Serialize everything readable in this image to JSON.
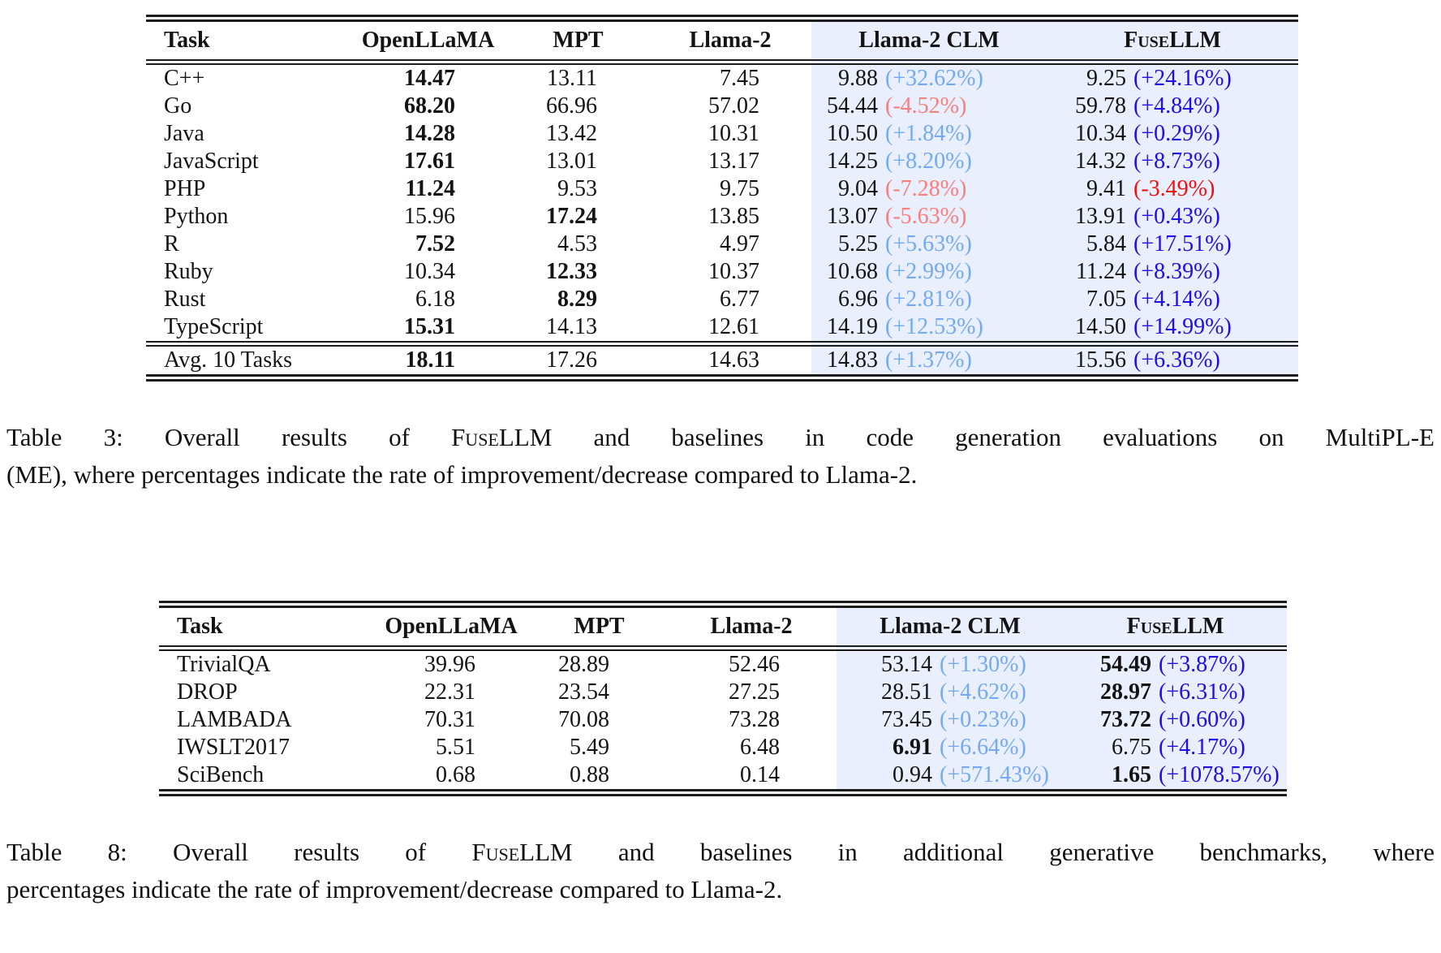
{
  "colors": {
    "highlight_bg": "#e9effc",
    "pct_positive_light": "#74a9f4",
    "pct_negative_light": "#f97e7e",
    "pct_positive_dark": "#1d0ee8",
    "pct_negative_dark": "#f30d0d",
    "rule_color": "#1c1c1c",
    "text_color": "#141414"
  },
  "tables": [
    {
      "name": "multipl-e-results-table",
      "headers": [
        "Task",
        "OpenLLaMA",
        "MPT",
        "Llama-2",
        "Llama-2 CLM",
        "FuseLLM"
      ],
      "rows": [
        {
          "task": "C++",
          "scores": [
            {
              "v": "14.47",
              "bold": true
            },
            {
              "v": "13.11"
            },
            {
              "v": "7.45"
            }
          ],
          "clm": {
            "v": "9.88",
            "pct": "(+32.62%)"
          },
          "fusellm": {
            "v": "9.25",
            "pct": "(+24.16%)"
          }
        },
        {
          "task": "Go",
          "scores": [
            {
              "v": "68.20",
              "bold": true
            },
            {
              "v": "66.96"
            },
            {
              "v": "57.02"
            }
          ],
          "clm": {
            "v": "54.44",
            "pct": "(-4.52%)"
          },
          "fusellm": {
            "v": "59.78",
            "pct": "(+4.84%)"
          }
        },
        {
          "task": "Java",
          "scores": [
            {
              "v": "14.28",
              "bold": true
            },
            {
              "v": "13.42"
            },
            {
              "v": "10.31"
            }
          ],
          "clm": {
            "v": "10.50",
            "pct": "(+1.84%)"
          },
          "fusellm": {
            "v": "10.34",
            "pct": "(+0.29%)"
          }
        },
        {
          "task": "JavaScript",
          "scores": [
            {
              "v": "17.61",
              "bold": true
            },
            {
              "v": "13.01"
            },
            {
              "v": "13.17"
            }
          ],
          "clm": {
            "v": "14.25",
            "pct": "(+8.20%)"
          },
          "fusellm": {
            "v": "14.32",
            "pct": "(+8.73%)"
          }
        },
        {
          "task": "PHP",
          "scores": [
            {
              "v": "11.24",
              "bold": true
            },
            {
              "v": "9.53"
            },
            {
              "v": "9.75"
            }
          ],
          "clm": {
            "v": "9.04",
            "pct": "(-7.28%)"
          },
          "fusellm": {
            "v": "9.41",
            "pct": "(-3.49%)"
          }
        },
        {
          "task": "Python",
          "scores": [
            {
              "v": "15.96"
            },
            {
              "v": "17.24",
              "bold": true
            },
            {
              "v": "13.85"
            }
          ],
          "clm": {
            "v": "13.07",
            "pct": "(-5.63%)"
          },
          "fusellm": {
            "v": "13.91",
            "pct": "(+0.43%)"
          }
        },
        {
          "task": "R",
          "scores": [
            {
              "v": "7.52",
              "bold": true
            },
            {
              "v": "4.53"
            },
            {
              "v": "4.97"
            }
          ],
          "clm": {
            "v": "5.25",
            "pct": "(+5.63%)"
          },
          "fusellm": {
            "v": "5.84",
            "pct": "(+17.51%)"
          }
        },
        {
          "task": "Ruby",
          "scores": [
            {
              "v": "10.34"
            },
            {
              "v": "12.33",
              "bold": true
            },
            {
              "v": "10.37"
            }
          ],
          "clm": {
            "v": "10.68",
            "pct": "(+2.99%)"
          },
          "fusellm": {
            "v": "11.24",
            "pct": "(+8.39%)"
          }
        },
        {
          "task": "Rust",
          "scores": [
            {
              "v": "6.18"
            },
            {
              "v": "8.29",
              "bold": true
            },
            {
              "v": "6.77"
            }
          ],
          "clm": {
            "v": "6.96",
            "pct": "(+2.81%)"
          },
          "fusellm": {
            "v": "7.05",
            "pct": "(+4.14%)"
          }
        },
        {
          "task": "TypeScript",
          "scores": [
            {
              "v": "15.31",
              "bold": true
            },
            {
              "v": "14.13"
            },
            {
              "v": "12.61"
            }
          ],
          "clm": {
            "v": "14.19",
            "pct": "(+12.53%)"
          },
          "fusellm": {
            "v": "14.50",
            "pct": "(+14.99%)"
          }
        }
      ],
      "footer": {
        "task": "Avg. 10 Tasks",
        "scores": [
          {
            "v": "18.11",
            "bold": true
          },
          {
            "v": "17.26"
          },
          {
            "v": "14.63"
          }
        ],
        "clm": {
          "v": "14.83",
          "pct": "(+1.37%)"
        },
        "fusellm": {
          "v": "15.56",
          "pct": "(+6.36%)"
        }
      }
    },
    {
      "name": "generative-benchmarks-table",
      "headers": [
        "Task",
        "OpenLLaMA",
        "MPT",
        "Llama-2",
        "Llama-2 CLM",
        "FuseLLM"
      ],
      "rows": [
        {
          "task": "TrivialQA",
          "scores": [
            {
              "v": "39.96"
            },
            {
              "v": "28.89"
            },
            {
              "v": "52.46"
            }
          ],
          "clm": {
            "v": "53.14",
            "pct": "(+1.30%)"
          },
          "fusellm": {
            "v": "54.49",
            "bold": true,
            "pct": "(+3.87%)"
          }
        },
        {
          "task": "DROP",
          "scores": [
            {
              "v": "22.31"
            },
            {
              "v": "23.54"
            },
            {
              "v": "27.25"
            }
          ],
          "clm": {
            "v": "28.51",
            "pct": "(+4.62%)"
          },
          "fusellm": {
            "v": "28.97",
            "bold": true,
            "pct": "(+6.31%)"
          }
        },
        {
          "task": "LAMBADA",
          "scores": [
            {
              "v": "70.31"
            },
            {
              "v": "70.08"
            },
            {
              "v": "73.28"
            }
          ],
          "clm": {
            "v": "73.45",
            "pct": "(+0.23%)"
          },
          "fusellm": {
            "v": "73.72",
            "bold": true,
            "pct": "(+0.60%)"
          }
        },
        {
          "task": "IWSLT2017",
          "scores": [
            {
              "v": "5.51"
            },
            {
              "v": "5.49"
            },
            {
              "v": "6.48"
            }
          ],
          "clm": {
            "v": "6.91",
            "bold": true,
            "pct": "(+6.64%)"
          },
          "fusellm": {
            "v": "6.75",
            "pct": "(+4.17%)"
          }
        },
        {
          "task": "SciBench",
          "scores": [
            {
              "v": "0.68"
            },
            {
              "v": "0.88"
            },
            {
              "v": "0.14"
            }
          ],
          "clm": {
            "v": "0.94",
            "pct": "(+571.43%)"
          },
          "fusellm": {
            "v": "1.65",
            "bold": true,
            "pct": "(+1078.57%)"
          }
        }
      ],
      "footer": null
    }
  ],
  "captions": {
    "t3": {
      "pre": "Table 3: Overall results of ",
      "brand": "FuseLLM",
      "post": " and baselines in code generation evaluations on MultiPL-E",
      "line2": "(ME), where percentages indicate the rate of improvement/decrease compared to Llama-2."
    },
    "t8": {
      "pre": "Table 8: Overall results of ",
      "brand": "FuseLLM",
      "post": " and baselines in additional generative benchmarks, where",
      "line2": "percentages indicate the rate of improvement/decrease compared to Llama-2."
    }
  }
}
